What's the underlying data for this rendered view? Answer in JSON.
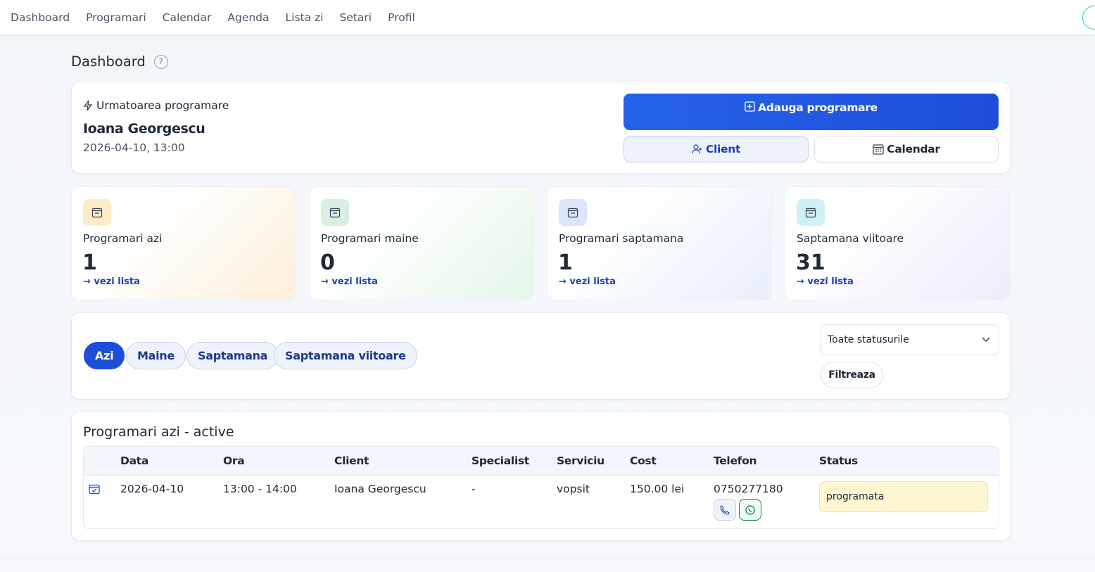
{
  "nav": {
    "items": [
      "Dashboard",
      "Programari",
      "Calendar",
      "Agenda",
      "Lista zi",
      "Setari",
      "Profil"
    ]
  },
  "header": {
    "title": "Dashboard",
    "help": "?"
  },
  "next": {
    "label": "Urmatoarea programare",
    "name": "Ioana Georgescu",
    "datetime": "2026-04-10, 13:00"
  },
  "actions": {
    "add": "Adauga programare",
    "client": "Client",
    "calendar": "Calendar"
  },
  "stats": [
    {
      "label": "Programari azi",
      "value": 1,
      "link": "→ vezi lista"
    },
    {
      "label": "Programari maine",
      "value": 0,
      "link": "→ vezi lista"
    },
    {
      "label": "Programari saptamana",
      "value": 1,
      "link": "→ vezi lista"
    },
    {
      "label": "Saptamana viitoare",
      "value": 31,
      "link": "→ vezi lista"
    }
  ],
  "filters": {
    "tabs": [
      "Azi",
      "Maine",
      "Saptamana",
      "Saptamana viitoare"
    ],
    "status": "Toate statusurile",
    "button": "Filtreaza"
  },
  "table": {
    "title": "Programari azi - active",
    "headers": [
      "Data",
      "Ora",
      "Client",
      "Specialist",
      "Serviciu",
      "Cost",
      "Telefon",
      "Status"
    ],
    "rows": [
      [
        "2026-04-10",
        "13:00 - 14:00",
        "Ioana Georgescu",
        "-",
        "vopsit",
        "150.00 lei",
        "0750277180",
        "programata"
      ]
    ]
  }
}
